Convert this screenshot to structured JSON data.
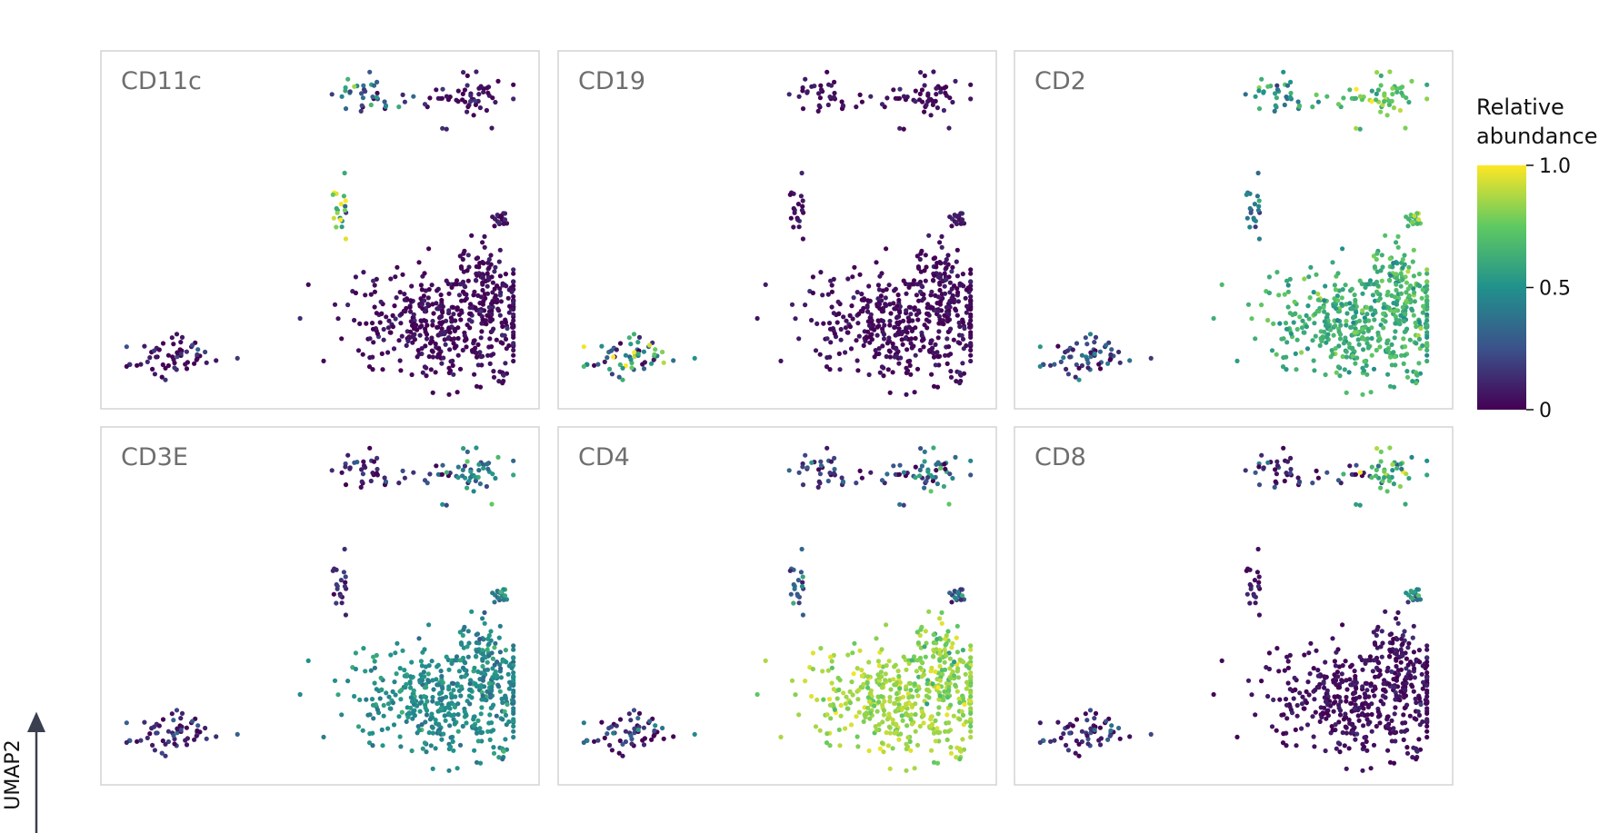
{
  "chart_data": {
    "type": "scatter",
    "embedding": "UMAP",
    "xlabel": "",
    "ylabel": "UMAP2",
    "xlim": [
      0,
      1
    ],
    "ylim": [
      0,
      1
    ],
    "grid": false,
    "axes_ticks": false,
    "colormap": "viridis",
    "colormap_stops": [
      "#440154",
      "#3b528b",
      "#21918c",
      "#5ec962",
      "#fde725"
    ],
    "colorbar": {
      "title_lines": [
        "Relative",
        "abundance"
      ],
      "range": [
        0,
        1
      ],
      "ticks": [
        {
          "value": 1.0,
          "label": "1.0"
        },
        {
          "value": 0.5,
          "label": "0.5"
        },
        {
          "value": 0,
          "label": "0"
        }
      ],
      "placement": "right"
    },
    "clusters": [
      {
        "name": "top-left group",
        "cx": 0.62,
        "cy": 0.91,
        "sx": 0.045,
        "sy": 0.03,
        "n": 34
      },
      {
        "name": "top-bridge group",
        "cx": 0.79,
        "cy": 0.9,
        "sx": 0.03,
        "sy": 0.02,
        "n": 12
      },
      {
        "name": "top-right group",
        "cx": 0.9,
        "cy": 0.9,
        "sx": 0.04,
        "sy": 0.035,
        "n": 44
      },
      {
        "name": "thin vertical group",
        "cx": 0.55,
        "cy": 0.55,
        "sx": 0.008,
        "sy": 0.05,
        "n": 20
      },
      {
        "name": "small right group",
        "cx": 0.96,
        "cy": 0.53,
        "sx": 0.012,
        "sy": 0.012,
        "n": 18
      },
      {
        "name": "bottom-left group",
        "cx": 0.12,
        "cy": 0.12,
        "sx": 0.06,
        "sy": 0.03,
        "n": 60
      },
      {
        "name": "large lower-right group",
        "cx": 0.83,
        "cy": 0.22,
        "sx": 0.12,
        "sy": 0.08,
        "n": 420
      },
      {
        "name": "upper lobe of large group",
        "cx": 0.92,
        "cy": 0.34,
        "sx": 0.04,
        "sy": 0.07,
        "n": 80
      },
      {
        "name": "small tail group",
        "cx": 0.96,
        "cy": 0.06,
        "sx": 0.008,
        "sy": 0.014,
        "n": 8
      }
    ],
    "panels": [
      {
        "marker": "CD11c",
        "cluster_mean_abundance": [
          0.35,
          0.08,
          0.04,
          0.75,
          0.05,
          0.04,
          0.03,
          0.03,
          0.05
        ],
        "cluster_spread": [
          0.25,
          0.08,
          0.05,
          0.2,
          0.05,
          0.1,
          0.05,
          0.05,
          0.05
        ]
      },
      {
        "marker": "CD19",
        "cluster_mean_abundance": [
          0.04,
          0.04,
          0.04,
          0.05,
          0.04,
          0.45,
          0.03,
          0.03,
          0.04
        ],
        "cluster_spread": [
          0.05,
          0.05,
          0.05,
          0.05,
          0.05,
          0.3,
          0.04,
          0.04,
          0.04
        ]
      },
      {
        "marker": "CD2",
        "cluster_mean_abundance": [
          0.55,
          0.72,
          0.75,
          0.35,
          0.68,
          0.22,
          0.63,
          0.68,
          0.65
        ],
        "cluster_spread": [
          0.15,
          0.12,
          0.12,
          0.1,
          0.1,
          0.15,
          0.08,
          0.1,
          0.1
        ]
      },
      {
        "marker": "CD3E",
        "cluster_mean_abundance": [
          0.1,
          0.2,
          0.45,
          0.12,
          0.42,
          0.12,
          0.48,
          0.45,
          0.5
        ],
        "cluster_spread": [
          0.12,
          0.15,
          0.15,
          0.08,
          0.12,
          0.1,
          0.06,
          0.08,
          0.1
        ]
      },
      {
        "marker": "CD4",
        "cluster_mean_abundance": [
          0.2,
          0.1,
          0.35,
          0.3,
          0.25,
          0.15,
          0.85,
          0.78,
          0.85
        ],
        "cluster_spread": [
          0.15,
          0.1,
          0.25,
          0.12,
          0.12,
          0.15,
          0.06,
          0.1,
          0.08
        ]
      },
      {
        "marker": "CD8",
        "cluster_mean_abundance": [
          0.15,
          0.12,
          0.65,
          0.06,
          0.4,
          0.12,
          0.04,
          0.05,
          0.06
        ],
        "cluster_spread": [
          0.15,
          0.1,
          0.2,
          0.05,
          0.12,
          0.15,
          0.04,
          0.05,
          0.05
        ]
      }
    ]
  }
}
